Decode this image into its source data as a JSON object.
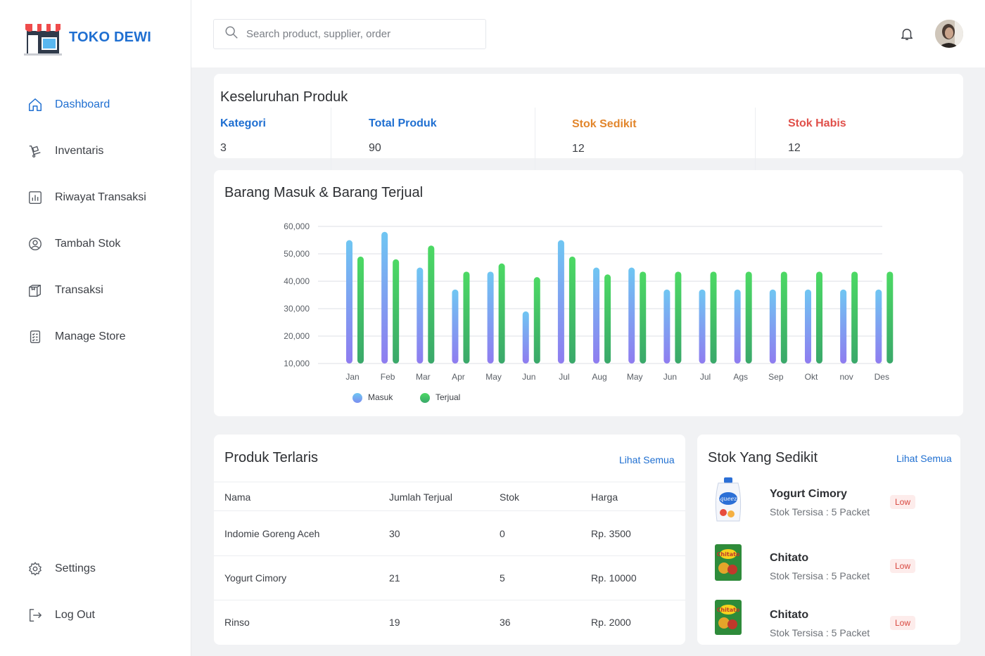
{
  "brand": {
    "name": "TOKO DEWI"
  },
  "sidebar": {
    "items": [
      {
        "label": "Dashboard",
        "icon": "home-icon",
        "active": true
      },
      {
        "label": "Inventaris",
        "icon": "trolley-icon"
      },
      {
        "label": "Riwayat Transaksi",
        "icon": "bar-chart-icon"
      },
      {
        "label": "Tambah Stok",
        "icon": "user-circle-icon"
      },
      {
        "label": "Transaksi",
        "icon": "box-icon"
      },
      {
        "label": "Manage Store",
        "icon": "checklist-icon"
      }
    ],
    "bottom": [
      {
        "label": "Settings",
        "icon": "gear-icon"
      },
      {
        "label": "Log Out",
        "icon": "logout-icon"
      }
    ]
  },
  "header": {
    "search_placeholder": "Search product, supplier, order"
  },
  "overview": {
    "title": "Keseluruhan Produk",
    "stats": [
      {
        "label": "Kategori",
        "value": "3",
        "color": "#1f6fd1"
      },
      {
        "label": "Total Produk",
        "value": "90",
        "color": "#1f6fd1"
      },
      {
        "label": "Stok Sedikit",
        "value": "12",
        "color": "#e2862c"
      },
      {
        "label": "Stok Habis",
        "value": "12",
        "color": "#e0504a"
      }
    ]
  },
  "chart": {
    "title": "Barang Masuk & Barang Terjual"
  },
  "chart_data": {
    "type": "bar",
    "categories": [
      "Jan",
      "Feb",
      "Mar",
      "Apr",
      "May",
      "Jun",
      "Jul",
      "Aug",
      "May",
      "Jun",
      "Jul",
      "Ags",
      "Sep",
      "Okt",
      "nov",
      "Des"
    ],
    "series": [
      {
        "name": "Masuk",
        "color": "#6fb6f0",
        "values": [
          55000,
          58000,
          45000,
          37000,
          43500,
          29000,
          55000,
          45000,
          45000,
          37000,
          37000,
          37000,
          37000,
          37000,
          37000,
          37000
        ]
      },
      {
        "name": "Terjual",
        "color": "#4cd964",
        "values": [
          49000,
          48000,
          53000,
          43500,
          46500,
          41500,
          49000,
          42500,
          43500,
          43500,
          43500,
          43500,
          43500,
          43500,
          43500,
          43500
        ]
      }
    ],
    "yticks": [
      "60,000",
      "50,000",
      "40,000",
      "30,000",
      "20,000",
      "10,000"
    ],
    "ylim": [
      10000,
      60000
    ],
    "grid": true,
    "legend": "bottom-left"
  },
  "best_sellers": {
    "title": "Produk Terlaris",
    "link": "Lihat Semua",
    "columns": [
      "Nama",
      "Jumlah Terjual",
      "Stok",
      "Harga"
    ],
    "rows": [
      [
        "Indomie Goreng Aceh",
        "30",
        "0",
        "Rp. 3500"
      ],
      [
        "Yogurt Cimory",
        "21",
        "5",
        "Rp. 10000"
      ],
      [
        "Rinso",
        "19",
        "36",
        "Rp. 2000"
      ]
    ]
  },
  "low_stock": {
    "title": "Stok Yang Sedikit",
    "link": "Lihat Semua",
    "items": [
      {
        "name": "Yogurt Cimory",
        "stock": "Stok Tersisa : 5 Packet",
        "badge": "Low"
      },
      {
        "name": "Chitato",
        "stock": "Stok Tersisa : 5 Packet",
        "badge": "Low"
      },
      {
        "name": "Chitato",
        "stock": "Stok Tersisa : 5 Packet",
        "badge": "Low"
      }
    ]
  }
}
